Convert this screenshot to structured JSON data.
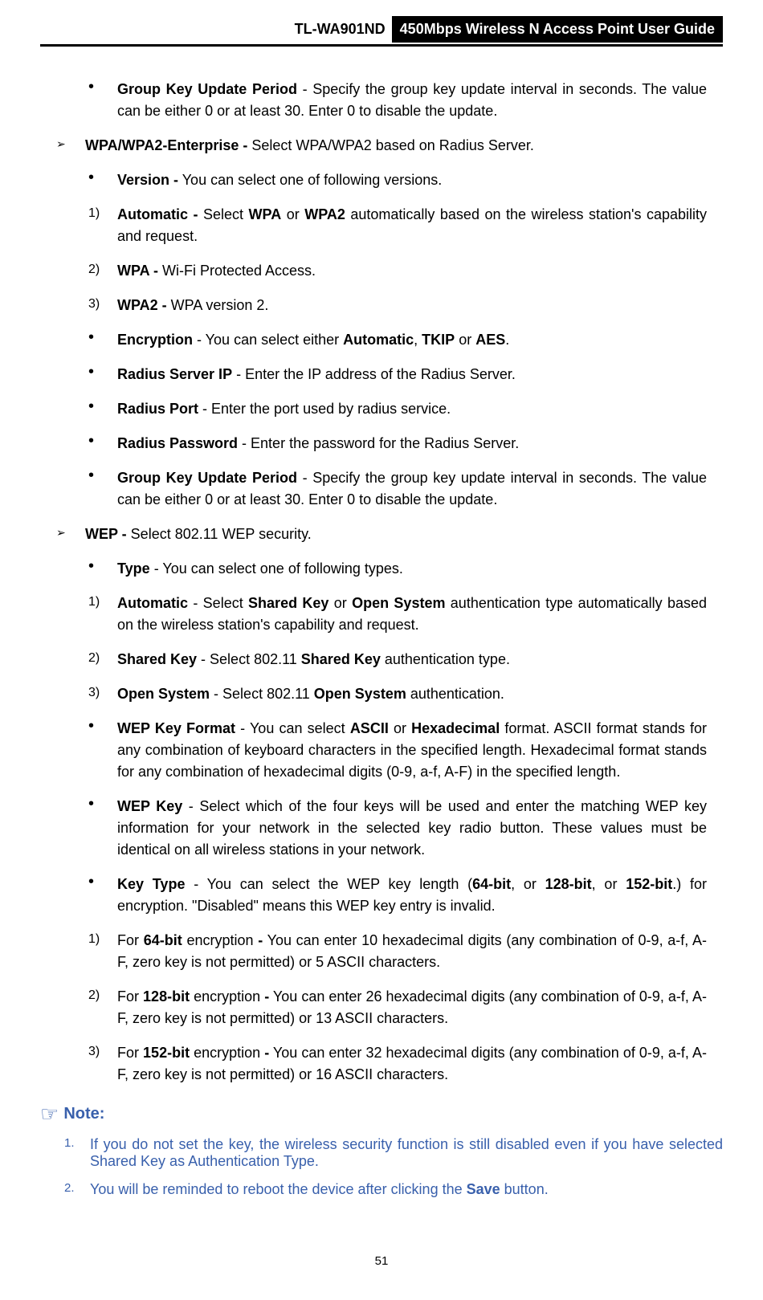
{
  "header": {
    "model": "TL-WA901ND",
    "title": "450Mbps Wireless N Access Point User Guide"
  },
  "items": [
    {
      "level": "indent2",
      "marker": "dot",
      "html": "<b>Group Key Update Period</b> - Specify the group key update interval in seconds. The value can be either 0 or at least 30. Enter 0 to disable the update."
    },
    {
      "level": "indent1",
      "marker": "chevron",
      "html": "<b>WPA/WPA2-Enterprise -</b> Select WPA/WPA2 based on Radius Server."
    },
    {
      "level": "indent2",
      "marker": "dot",
      "html": "<b>Version -</b> You can select one of following versions."
    },
    {
      "level": "num2",
      "marker": "num",
      "num": "1)",
      "html": "<b>Automatic -</b> Select <b>WPA</b> or <b>WPA2</b> automatically based on the wireless station's capability and request."
    },
    {
      "level": "num2",
      "marker": "num",
      "num": "2)",
      "html": "<b>WPA -</b> Wi-Fi Protected Access."
    },
    {
      "level": "num2",
      "marker": "num",
      "num": "3)",
      "html": "<b>WPA2 -</b> WPA version 2."
    },
    {
      "level": "indent2",
      "marker": "dot",
      "html": "<b>Encryption</b> - You can select either <b>Automatic</b>, <b>TKIP</b> or <b>AES</b>."
    },
    {
      "level": "indent2",
      "marker": "dot",
      "html": "<b>Radius Server IP</b> - Enter the IP address of the Radius Server."
    },
    {
      "level": "indent2",
      "marker": "dot",
      "html": "<b>Radius Port</b> - Enter the port used by radius service."
    },
    {
      "level": "indent2",
      "marker": "dot",
      "html": "<b>Radius Password</b> - Enter the password for the Radius Server."
    },
    {
      "level": "indent2",
      "marker": "dot",
      "html": "<b>Group Key Update Period</b> - Specify the group key update interval in seconds. The value can be either 0 or at least 30. Enter 0 to disable the update."
    },
    {
      "level": "indent1",
      "marker": "chevron",
      "html": "<b>WEP -</b> Select 802.11 WEP security."
    },
    {
      "level": "indent2",
      "marker": "dot",
      "html": "<b>Type</b> - You can select one of following types."
    },
    {
      "level": "num2",
      "marker": "num",
      "num": "1)",
      "html": "<b>Automatic</b> - Select <b>Shared Key</b> or <b>Open System</b> authentication type automatically based on the wireless station's capability and request."
    },
    {
      "level": "num2",
      "marker": "num",
      "num": "2)",
      "html": "<b>Shared Key</b> - Select 802.11 <b>Shared Key</b> authentication type."
    },
    {
      "level": "num2",
      "marker": "num",
      "num": "3)",
      "html": "<b>Open System</b> - Select 802.11 <b>Open System</b> authentication."
    },
    {
      "level": "indent2",
      "marker": "dot",
      "html": "<b>WEP Key Format</b> - You can select <b>ASCII</b> or <b>Hexadecimal</b> format. ASCII format stands for any combination of keyboard characters in the specified length. Hexadecimal format stands for any combination of hexadecimal digits (0-9, a-f, A-F) in the specified length."
    },
    {
      "level": "indent2",
      "marker": "dot",
      "html": "<b>WEP Key</b> - Select which of the four keys will be used and enter the matching WEP key information for your network in the selected key radio button. These values must be identical on all wireless stations in your network."
    },
    {
      "level": "indent2",
      "marker": "dot",
      "html": "<b>Key Type</b> - You can select the WEP key length (<b>64-bit</b>, or <b>128-bit</b>, or <b>152-bit</b>.) for encryption. \"Disabled\" means this WEP key entry is invalid."
    },
    {
      "level": "num2",
      "marker": "num",
      "num": "1)",
      "html": "For <b>64-bit</b> encryption <b>-</b> You can enter 10 hexadecimal digits (any combination of 0-9, a-f, A-F, zero key is not permitted) or 5 ASCII characters."
    },
    {
      "level": "num2",
      "marker": "num",
      "num": "2)",
      "html": "For <b>128-bit</b> encryption <b>-</b> You can enter 26 hexadecimal digits (any combination of 0-9, a-f, A-F, zero key is not permitted) or 13 ASCII characters."
    },
    {
      "level": "num2",
      "marker": "num",
      "num": "3)",
      "html": "For <b>152-bit</b> encryption <b>-</b> You can enter 32 hexadecimal digits (any combination of 0-9, a-f, A-F, zero key is not permitted) or 16 ASCII characters."
    }
  ],
  "note": {
    "label": "Note:",
    "items": [
      {
        "num": "1.",
        "html": "If you do not set the key, the wireless security function is still disabled even if you have selected Shared Key as Authentication Type."
      },
      {
        "num": "2.",
        "html": "You will be reminded to reboot the device after clicking the <b>Save</b> button."
      }
    ]
  },
  "pageNumber": "51",
  "colors": {
    "noteColor": "#3960ac",
    "text": "#000000",
    "headerBg": "#000000",
    "headerFg": "#ffffff"
  }
}
